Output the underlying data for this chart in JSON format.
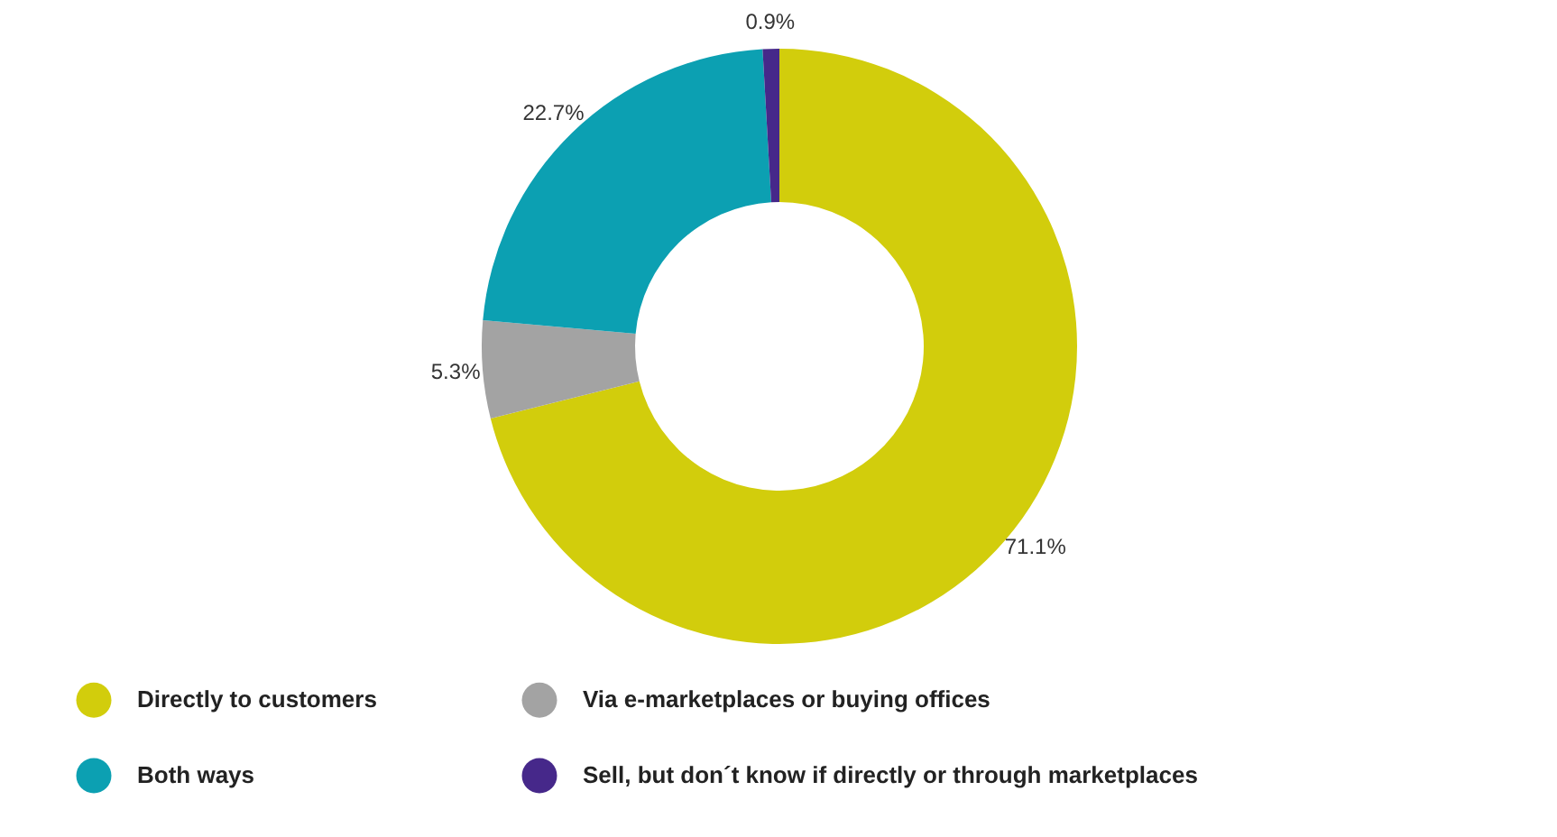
{
  "chart_data": {
    "type": "donut",
    "categories": [
      "Directly to customers",
      "Via e-marketplaces or buying offices",
      "Both ways",
      "Sell, but don´t know if directly or through marketplaces"
    ],
    "values": [
      71.1,
      5.3,
      22.7,
      0.9
    ],
    "colors": [
      "#d2cd0c",
      "#a3a3a3",
      "#0ca0b2",
      "#46288a"
    ],
    "value_labels": [
      "71.1%",
      "5.3%",
      "22.7%",
      "0.9%"
    ],
    "legend": "bottom"
  }
}
